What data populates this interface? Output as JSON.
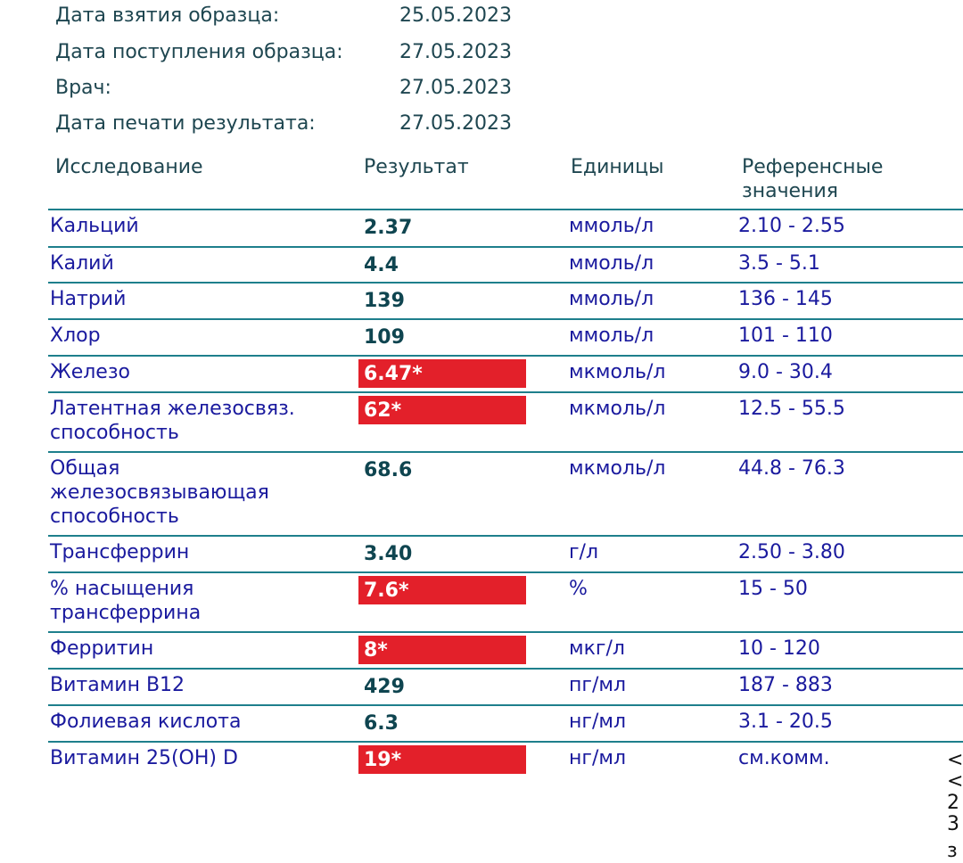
{
  "meta": [
    {
      "label": "Дата взятия образца:",
      "value": "25.05.2023"
    },
    {
      "label": "Дата поступления образца:",
      "value": "27.05.2023"
    },
    {
      "label": "Врач:",
      "value": "27.05.2023"
    },
    {
      "label": "Дата печати результата:",
      "value": "27.05.2023"
    }
  ],
  "headers": {
    "test": "Исследование",
    "result": "Результат",
    "units": "Единицы",
    "reference_line1": "Референсные",
    "reference_line2": "значения"
  },
  "rows": [
    {
      "name": "Кальций",
      "result": "2.37",
      "flag": false,
      "unit": "ммоль/л",
      "ref": "2.10 - 2.55"
    },
    {
      "name": "Калий",
      "result": "4.4",
      "flag": false,
      "unit": "ммоль/л",
      "ref": "3.5 - 5.1"
    },
    {
      "name": "Натрий",
      "result": "139",
      "flag": false,
      "unit": "ммоль/л",
      "ref": "136 - 145"
    },
    {
      "name": "Хлор",
      "result": "109",
      "flag": false,
      "unit": "ммоль/л",
      "ref": "101 - 110"
    },
    {
      "name": "Железо",
      "result": "6.47*",
      "flag": true,
      "unit": "мкмоль/л",
      "ref": "9.0 - 30.4"
    },
    {
      "name": "Латентная железосвяз. способность",
      "result": "62*",
      "flag": true,
      "unit": "мкмоль/л",
      "ref": "12.5 - 55.5"
    },
    {
      "name": "Общая железосвязывающая способность",
      "result": "68.6",
      "flag": false,
      "unit": "мкмоль/л",
      "ref": "44.8 - 76.3"
    },
    {
      "name": "Трансферрин",
      "result": "3.40",
      "flag": false,
      "unit": "г/л",
      "ref": "2.50 - 3.80"
    },
    {
      "name": "% насыщения трансферрина",
      "result": "7.6*",
      "flag": true,
      "unit": "%",
      "ref": "15 - 50"
    },
    {
      "name": "Ферритин",
      "result": "8*",
      "flag": true,
      "unit": "мкг/л",
      "ref": "10 - 120"
    },
    {
      "name": "Витамин B12",
      "result": "429",
      "flag": false,
      "unit": "пг/мл",
      "ref": "187 - 883"
    },
    {
      "name": "Фолиевая кислота",
      "result": "6.3",
      "flag": false,
      "unit": "нг/мл",
      "ref": "3.1 - 20.5"
    },
    {
      "name": "Витамин 25(OH) D",
      "result": "19*",
      "flag": true,
      "unit": "нг/мл",
      "ref": "см.комм."
    }
  ],
  "edge_fragments": [
    "<",
    "<",
    "2",
    "3",
    "з"
  ]
}
